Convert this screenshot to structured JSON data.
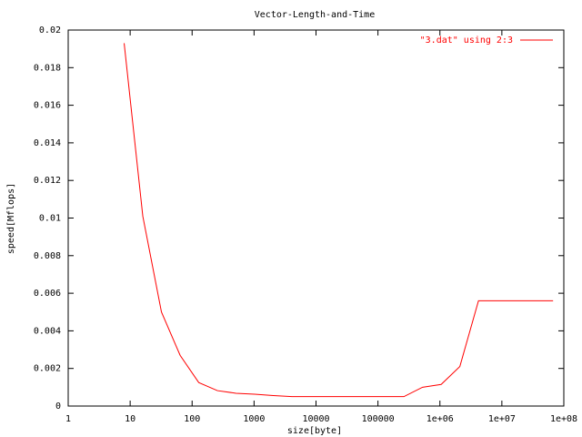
{
  "chart_data": {
    "type": "line",
    "title": "Vector-Length-and-Time",
    "x_label": "size[byte]",
    "y_label": "speed[Mflops]",
    "x": [
      8,
      16,
      32,
      64,
      128,
      256,
      512,
      1024,
      2048,
      4096,
      8192,
      16384,
      32768,
      65536,
      131072,
      262144,
      524288,
      1048576,
      2097152,
      4194304,
      8388608,
      16777216,
      33554432,
      67108864
    ],
    "series": [
      {
        "name": "\"3.dat\" using 2:3",
        "color": "#ff0000",
        "values": [
          0.0193,
          0.0101,
          0.005,
          0.0027,
          0.00125,
          0.00082,
          0.00068,
          0.00063,
          0.00056,
          0.0005,
          0.0005,
          0.0005,
          0.0005,
          0.0005,
          0.0005,
          0.0005,
          0.001,
          0.00115,
          0.0021,
          0.0056,
          0.0056,
          0.0056,
          0.0056,
          0.0056
        ]
      }
    ],
    "xscale": "log",
    "xlim": [
      1,
      100000000
    ],
    "xticks": [
      1,
      10,
      100,
      1000,
      10000,
      100000,
      {
        "value": 1000000,
        "label": "1e+06"
      },
      {
        "value": 10000000,
        "label": "1e+07"
      },
      {
        "value": 100000000,
        "label": "1e+08"
      }
    ],
    "ylim": [
      0,
      0.02
    ],
    "yticks": [
      0,
      0.002,
      0.004,
      0.006,
      0.008,
      0.01,
      0.012,
      0.014,
      0.016,
      0.018,
      0.02
    ],
    "legend": "top-right"
  }
}
